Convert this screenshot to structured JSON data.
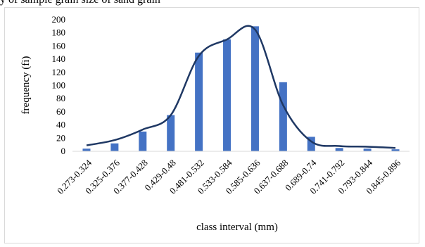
{
  "caption": {
    "text": "y of sample grain size of sand grain"
  },
  "chart_data": {
    "type": "bar",
    "categories": [
      "0.273-0.324",
      "0.325-0.376",
      "0.377-0.428",
      "0.429-0.48",
      "0.481-0.532",
      "0.533-0.584",
      "0.585-0.636",
      "0.637-0.688",
      "0.689-0.74",
      "0.741-0.792",
      "0.793-0.844",
      "0.845-0.896"
    ],
    "series": [
      {
        "values": [
          4,
          12,
          30,
          55,
          150,
          170,
          190,
          105,
          22,
          5,
          4,
          3
        ],
        "color": "#4472c4"
      }
    ],
    "trendline": {
      "values": [
        9,
        17,
        33,
        55,
        145,
        170,
        185,
        70,
        15,
        8,
        7,
        5
      ],
      "color": "#1f3864"
    },
    "xlabel": "class interval (mm)",
    "ylabel": "frequency (fi)",
    "ylim": [
      0,
      200
    ],
    "yticks": [
      0,
      20,
      40,
      60,
      80,
      100,
      120,
      140,
      160,
      180,
      200
    ],
    "grid": false,
    "legend": "none"
  }
}
